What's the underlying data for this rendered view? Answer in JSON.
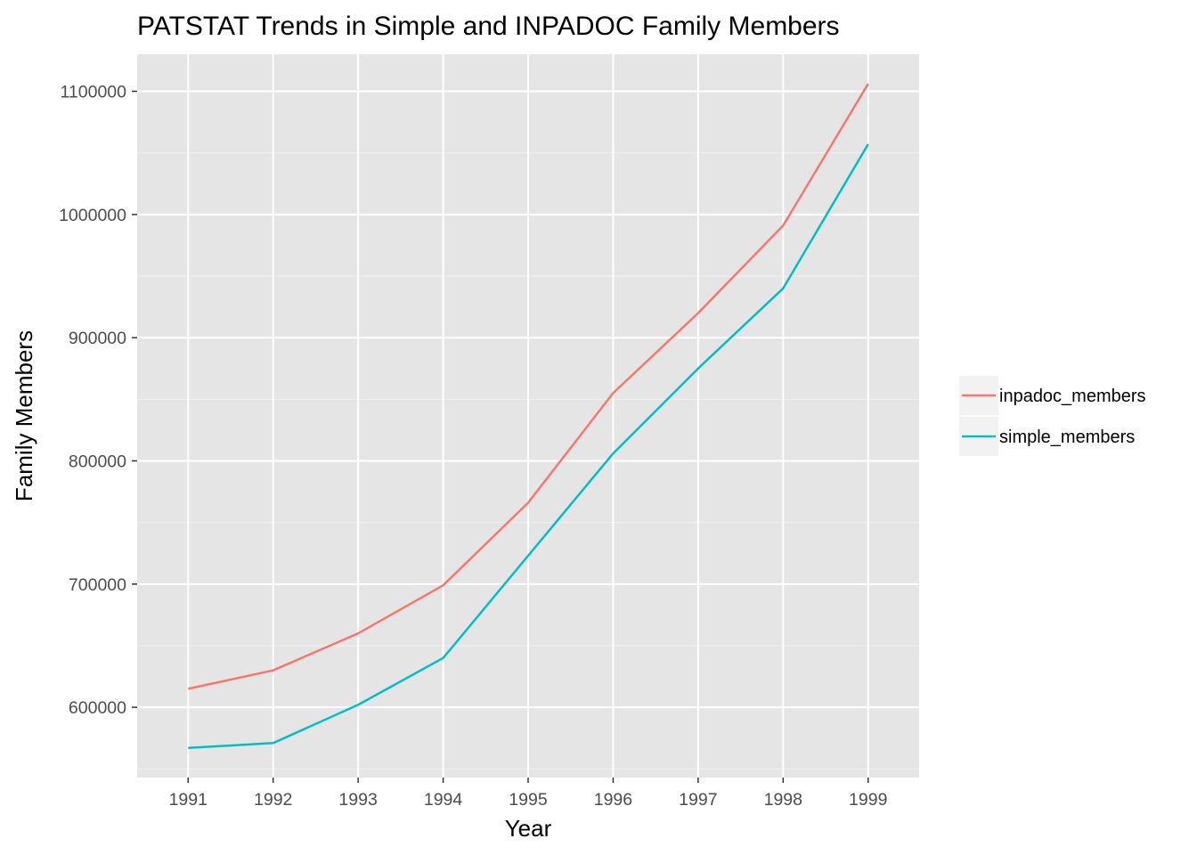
{
  "chart_data": {
    "type": "line",
    "title": "PATSTAT Trends in Simple and INPADOC Family Members",
    "xlabel": "Year",
    "ylabel": "Family Members",
    "x": [
      1991,
      1992,
      1993,
      1994,
      1995,
      1996,
      1997,
      1998,
      1999
    ],
    "x_tick_labels": [
      "1991",
      "1992",
      "1993",
      "1994",
      "1995",
      "1996",
      "1997",
      "1998",
      "1999"
    ],
    "y_ticks": [
      600000,
      700000,
      800000,
      900000,
      1000000,
      1100000
    ],
    "y_tick_labels": [
      "600000",
      "700000",
      "800000",
      "900000",
      "1000000",
      "1100000"
    ],
    "ylim": [
      543000,
      1130000
    ],
    "grid": true,
    "legend_position": "right",
    "series": [
      {
        "name": "inpadoc_members",
        "color": "#F8766D",
        "values": [
          615000,
          630000,
          660000,
          699000,
          766000,
          855000,
          920000,
          991000,
          1106000
        ]
      },
      {
        "name": "simple_members",
        "color": "#00BFC4",
        "values": [
          567000,
          571000,
          602000,
          640000,
          723000,
          806000,
          875000,
          940000,
          1057000
        ]
      }
    ]
  }
}
